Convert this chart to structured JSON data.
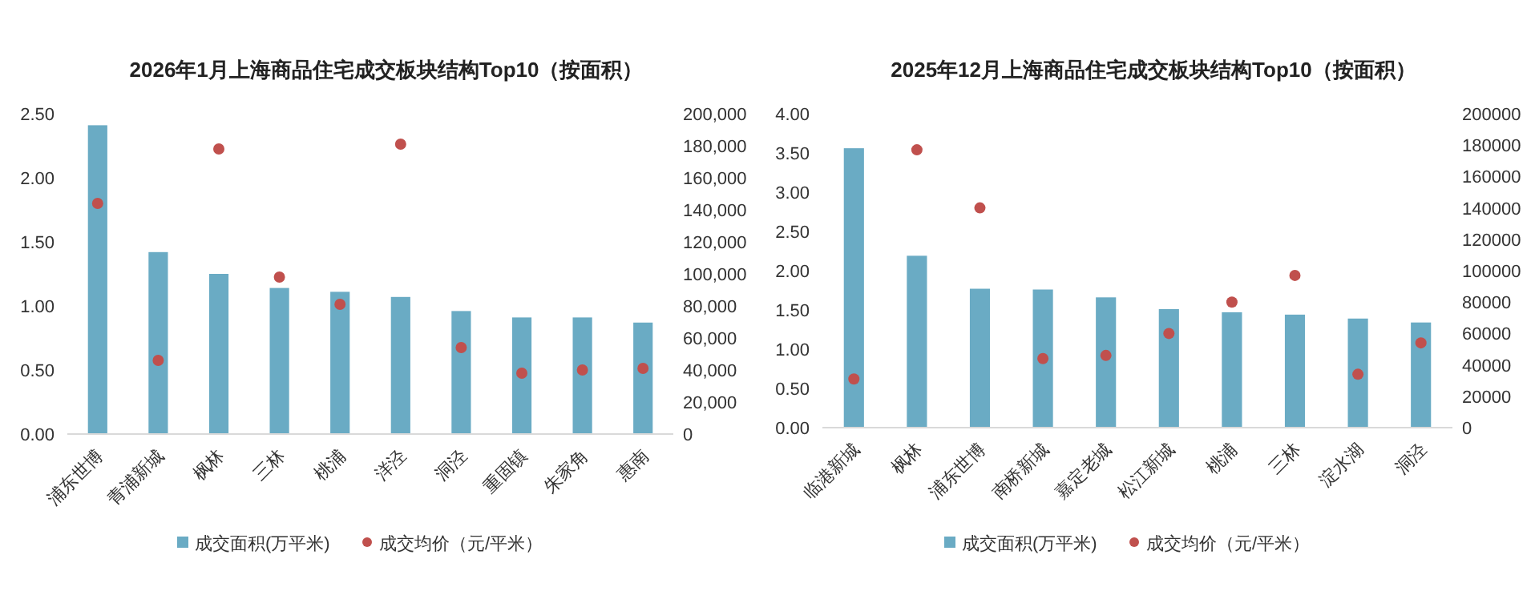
{
  "chart_data": [
    {
      "type": "bar",
      "title": "2026年1月上海商品住宅成交板块结构Top10（按面积）",
      "categories": [
        "浦东世博",
        "青浦新城",
        "枫林",
        "三林",
        "桃浦",
        "洋泾",
        "洞泾",
        "重固镇",
        "朱家角",
        "惠南"
      ],
      "series": [
        {
          "name": "成交面积(万平米)",
          "type": "bar",
          "color": "#6aabc4",
          "values": [
            2.41,
            1.42,
            1.25,
            1.14,
            1.11,
            1.07,
            0.96,
            0.91,
            0.91,
            0.87
          ]
        },
        {
          "name": "成交均价（元/平米）",
          "type": "scatter",
          "axis": "y2",
          "color": "#c0504d",
          "values": [
            144000,
            46000,
            178000,
            98000,
            81000,
            181000,
            54000,
            38000,
            40000,
            41000
          ]
        }
      ],
      "ylim": [
        0,
        2.5
      ],
      "yticks": [
        {
          "value": 0,
          "label": "0.00"
        },
        {
          "value": 0.5,
          "label": "0.50"
        },
        {
          "value": 1,
          "label": "1.00"
        },
        {
          "value": 1.5,
          "label": "1.50"
        },
        {
          "value": 2,
          "label": "2.00"
        },
        {
          "value": 2.5,
          "label": "2.50"
        }
      ],
      "y2lim": [
        0,
        200000
      ],
      "y2ticks": [
        0,
        {
          "value": 20000,
          "label": "20,000"
        },
        {
          "value": 40000,
          "label": "40,000"
        },
        {
          "value": 60000,
          "label": "60,000"
        },
        {
          "value": 80000,
          "label": "80,000"
        },
        {
          "value": 100000,
          "label": "100,000"
        },
        {
          "value": 120000,
          "label": "120,000"
        },
        {
          "value": 140000,
          "label": "140,000"
        },
        {
          "value": 160000,
          "label": "160,000"
        },
        {
          "value": 180000,
          "label": "180,000"
        },
        {
          "value": 200000,
          "label": "200,000"
        }
      ],
      "legend": "bottom",
      "marker": "circle"
    },
    {
      "type": "bar",
      "title": "2025年12月上海商品住宅成交板块结构Top10（按面积）",
      "categories": [
        "临港新城",
        "枫林",
        "浦东世博",
        "南桥新城",
        "嘉定老城",
        "松江新城",
        "桃浦",
        "三林",
        "淀水湖",
        "洞泾"
      ],
      "series": [
        {
          "name": "成交面积(万平米)",
          "type": "bar",
          "color": "#6aabc4",
          "values": [
            3.56,
            2.19,
            1.77,
            1.76,
            1.66,
            1.51,
            1.47,
            1.44,
            1.39,
            1.34
          ]
        },
        {
          "name": "成交均价（元/平米）",
          "type": "scatter",
          "axis": "y2",
          "color": "#c0504d",
          "values": [
            31000,
            177000,
            140000,
            44000,
            46000,
            60000,
            80000,
            97000,
            34000,
            54000
          ]
        }
      ],
      "ylim": [
        0,
        4
      ],
      "yticks": [
        {
          "value": 0,
          "label": "0.00"
        },
        {
          "value": 0.5,
          "label": "0.50"
        },
        {
          "value": 1,
          "label": "1.00"
        },
        {
          "value": 1.5,
          "label": "1.50"
        },
        {
          "value": 2,
          "label": "2.00"
        },
        {
          "value": 2.5,
          "label": "2.50"
        },
        {
          "value": 3,
          "label": "3.00"
        },
        {
          "value": 3.5,
          "label": "3.50"
        },
        {
          "value": 4,
          "label": "4.00"
        }
      ],
      "y2lim": [
        0,
        200000
      ],
      "y2ticks": [
        0,
        20000,
        40000,
        60000,
        80000,
        100000,
        120000,
        140000,
        160000,
        180000,
        200000
      ],
      "legend": "bottom",
      "marker": "circle"
    }
  ]
}
